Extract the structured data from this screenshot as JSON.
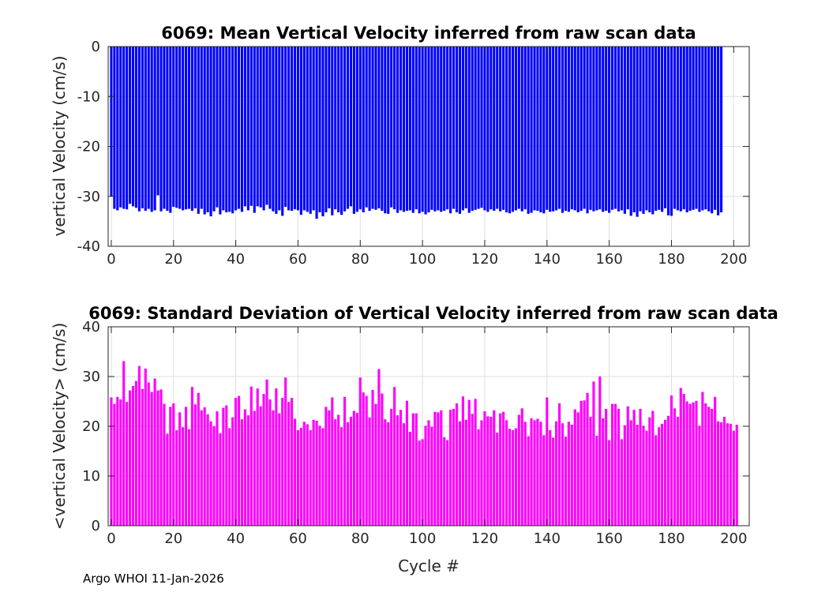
{
  "footer": "Argo WHOI 11-Jan-2026",
  "chart_data": [
    {
      "type": "bar",
      "title": "6069: Mean Vertical Velocity inferred from raw scan data",
      "xlabel": "",
      "ylabel": "vertical Velocity (cm/s)",
      "xlim": [
        -1,
        205
      ],
      "ylim": [
        -40,
        0
      ],
      "xticks": [
        0,
        20,
        40,
        60,
        80,
        100,
        120,
        140,
        160,
        180,
        200
      ],
      "yticks": [
        0,
        -10,
        -20,
        -30,
        -40
      ],
      "grid": true,
      "color": "#0000ff",
      "x_start": 0,
      "values": [
        -30.0,
        -32.5,
        -32.8,
        -32.2,
        -32.5,
        -32.6,
        -31.5,
        -32.0,
        -32.3,
        -33.0,
        -32.4,
        -32.9,
        -32.5,
        -33.1,
        -32.8,
        -29.8,
        -33.0,
        -32.5,
        -32.9,
        -33.3,
        -32.1,
        -32.3,
        -32.5,
        -32.8,
        -32.6,
        -32.5,
        -32.9,
        -32.4,
        -33.5,
        -32.5,
        -33.6,
        -33.2,
        -34.0,
        -33.0,
        -32.2,
        -33.6,
        -32.8,
        -33.2,
        -33.1,
        -33.4,
        -32.8,
        -32.5,
        -33.1,
        -32.0,
        -32.8,
        -31.9,
        -33.3,
        -32.0,
        -32.2,
        -32.8,
        -31.7,
        -32.5,
        -33.0,
        -33.5,
        -32.8,
        -33.9,
        -32.1,
        -32.8,
        -32.9,
        -32.6,
        -32.8,
        -33.7,
        -32.8,
        -33.1,
        -33.5,
        -32.8,
        -34.5,
        -33.2,
        -34.0,
        -33.2,
        -32.4,
        -33.8,
        -32.6,
        -33.2,
        -33.7,
        -33.0,
        -32.5,
        -32.0,
        -33.5,
        -33.1,
        -32.6,
        -33.2,
        -32.2,
        -32.9,
        -32.5,
        -32.7,
        -32.4,
        -32.9,
        -33.4,
        -33.5,
        -32.2,
        -32.6,
        -33.3,
        -32.8,
        -33.1,
        -32.9,
        -32.8,
        -33.3,
        -32.6,
        -33.4,
        -33.1,
        -33.6,
        -33.2,
        -32.7,
        -33.0,
        -32.8,
        -33.1,
        -32.9,
        -32.6,
        -33.4,
        -32.5,
        -33.2,
        -33.5,
        -32.8,
        -32.4,
        -33.3,
        -32.9,
        -32.7,
        -32.5,
        -32.3,
        -32.8,
        -33.1,
        -32.6,
        -32.9,
        -32.5,
        -33.0,
        -32.7,
        -33.2,
        -33.4,
        -33.1,
        -32.8,
        -32.5,
        -33.0,
        -32.6,
        -33.5,
        -33.3,
        -32.8,
        -32.9,
        -33.2,
        -33.4,
        -32.7,
        -33.1,
        -33.0,
        -32.8,
        -32.5,
        -33.3,
        -32.9,
        -33.1,
        -32.6,
        -32.8,
        -33.2,
        -32.9,
        -32.5,
        -33.4,
        -32.7,
        -33.0,
        -32.8,
        -32.6,
        -33.1,
        -32.9,
        -33.3,
        -32.7,
        -32.5,
        -33.0,
        -32.8,
        -33.5,
        -32.6,
        -33.9,
        -33.2,
        -34.1,
        -33.0,
        -33.5,
        -32.8,
        -33.2,
        -33.6,
        -32.9,
        -32.7,
        -33.1,
        -32.4,
        -33.8,
        -33.9,
        -32.5,
        -32.8,
        -33.0,
        -32.6,
        -33.2,
        -32.9,
        -32.7,
        -32.5,
        -33.1,
        -32.8,
        -32.6,
        -33.0,
        -33.4,
        -32.7,
        -33.8,
        -33.2
      ]
    },
    {
      "type": "bar",
      "title": "6069: Standard Deviation of Vertical Velocity inferred from raw scan data",
      "xlabel": "Cycle #",
      "ylabel": "<vertical Velocity> (cm/s)",
      "xlim": [
        -1,
        205
      ],
      "ylim": [
        0,
        40
      ],
      "xticks": [
        0,
        20,
        40,
        60,
        80,
        100,
        120,
        140,
        160,
        180,
        200
      ],
      "yticks": [
        0,
        10,
        20,
        30,
        40
      ],
      "grid": true,
      "color": "#ff00ff",
      "x_start": 0,
      "values": [
        25.8,
        24.5,
        25.9,
        25.4,
        33.1,
        24.9,
        27.2,
        28.1,
        29.1,
        32.1,
        27.5,
        31.6,
        28.8,
        26.9,
        29.6,
        27.2,
        27.4,
        24.5,
        18.5,
        23.9,
        24.6,
        19.2,
        22.8,
        19.8,
        23.9,
        19.4,
        27.9,
        24.4,
        26.7,
        23.2,
        23.8,
        22.4,
        21.0,
        20.0,
        23.0,
        18.6,
        23.7,
        24.2,
        19.6,
        21.8,
        25.7,
        26.1,
        21.4,
        23.4,
        22.2,
        28.0,
        23.1,
        27.6,
        24.0,
        26.5,
        29.4,
        25.4,
        23.2,
        27.6,
        22.6,
        25.7,
        29.8,
        24.9,
        25.7,
        21.5,
        19.2,
        19.7,
        20.9,
        20.4,
        19.2,
        21.3,
        21.1,
        20.1,
        19.6,
        23.9,
        23.2,
        25.8,
        21.4,
        22.3,
        19.8,
        25.9,
        20.8,
        21.9,
        23.1,
        22.7,
        29.8,
        26.8,
        26.1,
        21.8,
        27.3,
        24.5,
        31.5,
        26.6,
        21.4,
        20.8,
        23.5,
        27.9,
        22.2,
        23.3,
        20.6,
        25.1,
        18.9,
        22.6,
        22.6,
        17.1,
        17.4,
        20.1,
        21.2,
        19.9,
        22.9,
        22.8,
        23.2,
        17.8,
        17.2,
        23.3,
        23.5,
        24.6,
        21.0,
        26.0,
        21.3,
        25.3,
        22.5,
        25.5,
        19.4,
        21.2,
        23.0,
        22.0,
        21.9,
        23.2,
        18.7,
        22.6,
        22.9,
        21.2,
        19.5,
        19.2,
        19.6,
        22.3,
        23.6,
        20.9,
        18.0,
        21.6,
        21.2,
        21.5,
        20.9,
        18.2,
        25.8,
        19.2,
        17.7,
        21.0,
        24.6,
        20.6,
        17.9,
        20.9,
        20.3,
        23.4,
        22.8,
        25.1,
        25.2,
        26.7,
        21.9,
        29.0,
        18.1,
        30.0,
        21.6,
        23.5,
        17.2,
        24.5,
        24.5,
        23.5,
        17.4,
        20.2,
        24.0,
        21.2,
        23.3,
        20.3,
        23.5,
        20.1,
        19.1,
        21.8,
        23.1,
        18.2,
        19.8,
        20.5,
        21.3,
        22.1,
        26.2,
        23.6,
        21.9,
        27.7,
        26.5,
        25.0,
        24.5,
        24.8,
        25.1,
        20.1,
        26.9,
        24.6,
        23.9,
        23.5,
        25.9,
        21.0,
        20.8,
        21.9,
        20.6,
        20.5,
        19.1,
        20.3
      ]
    }
  ]
}
